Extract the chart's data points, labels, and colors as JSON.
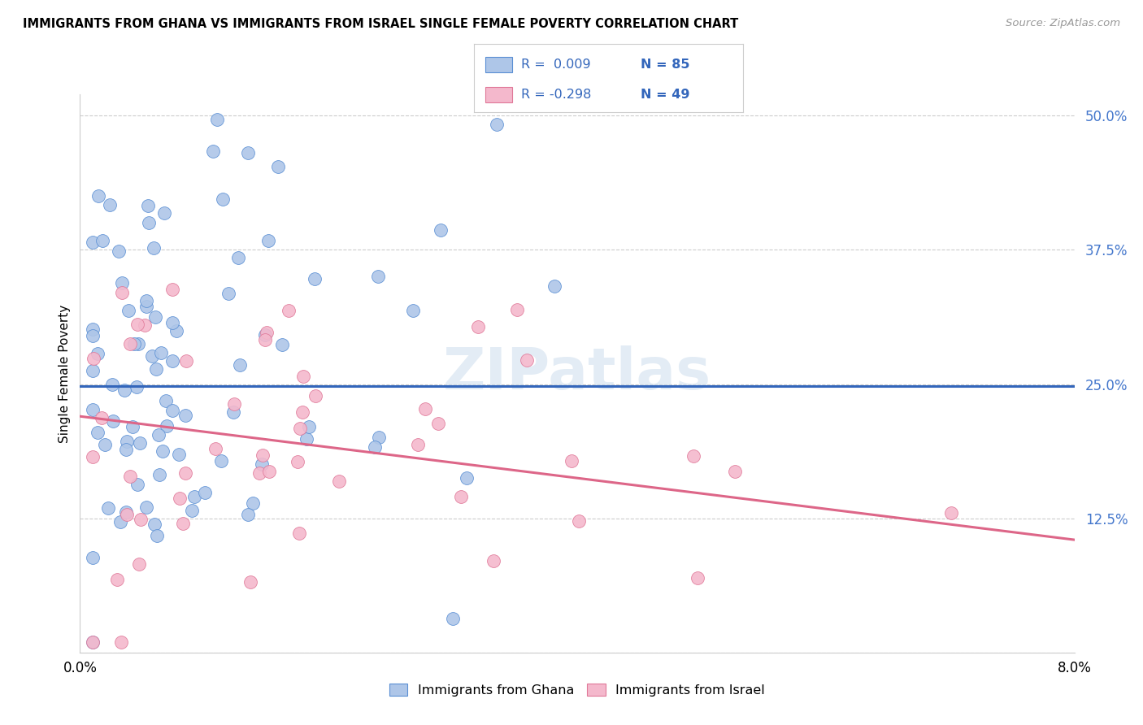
{
  "title": "IMMIGRANTS FROM GHANA VS IMMIGRANTS FROM ISRAEL SINGLE FEMALE POVERTY CORRELATION CHART",
  "source": "Source: ZipAtlas.com",
  "ylabel": "Single Female Poverty",
  "legend_label1": "Immigrants from Ghana",
  "legend_label2": "Immigrants from Israel",
  "legend_r1": "R =  0.009",
  "legend_n1": "N = 85",
  "legend_r2": "R = -0.298",
  "legend_n2": "N = 49",
  "xmin": 0.0,
  "xmax": 0.08,
  "ymin": 0.0,
  "ymax": 0.52,
  "yticks": [
    0.0,
    0.125,
    0.25,
    0.375,
    0.5
  ],
  "ytick_labels": [
    "",
    "12.5%",
    "25.0%",
    "37.5%",
    "50.0%"
  ],
  "xtick_vals": [
    0.0,
    0.02,
    0.04,
    0.06,
    0.08
  ],
  "color_ghana": "#aec6e8",
  "color_ghana_border": "#5a8fd4",
  "color_ghana_line": "#3366bb",
  "color_israel": "#f4b8cc",
  "color_israel_border": "#e07898",
  "color_israel_line": "#dd6688",
  "watermark": "ZIPatlas",
  "background_color": "#ffffff",
  "ghana_N": 85,
  "israel_N": 49,
  "ghana_R": 0.009,
  "israel_R": -0.298,
  "ghana_line_y0": 0.248,
  "ghana_line_y1": 0.248,
  "israel_line_y0": 0.22,
  "israel_line_y1": 0.105
}
